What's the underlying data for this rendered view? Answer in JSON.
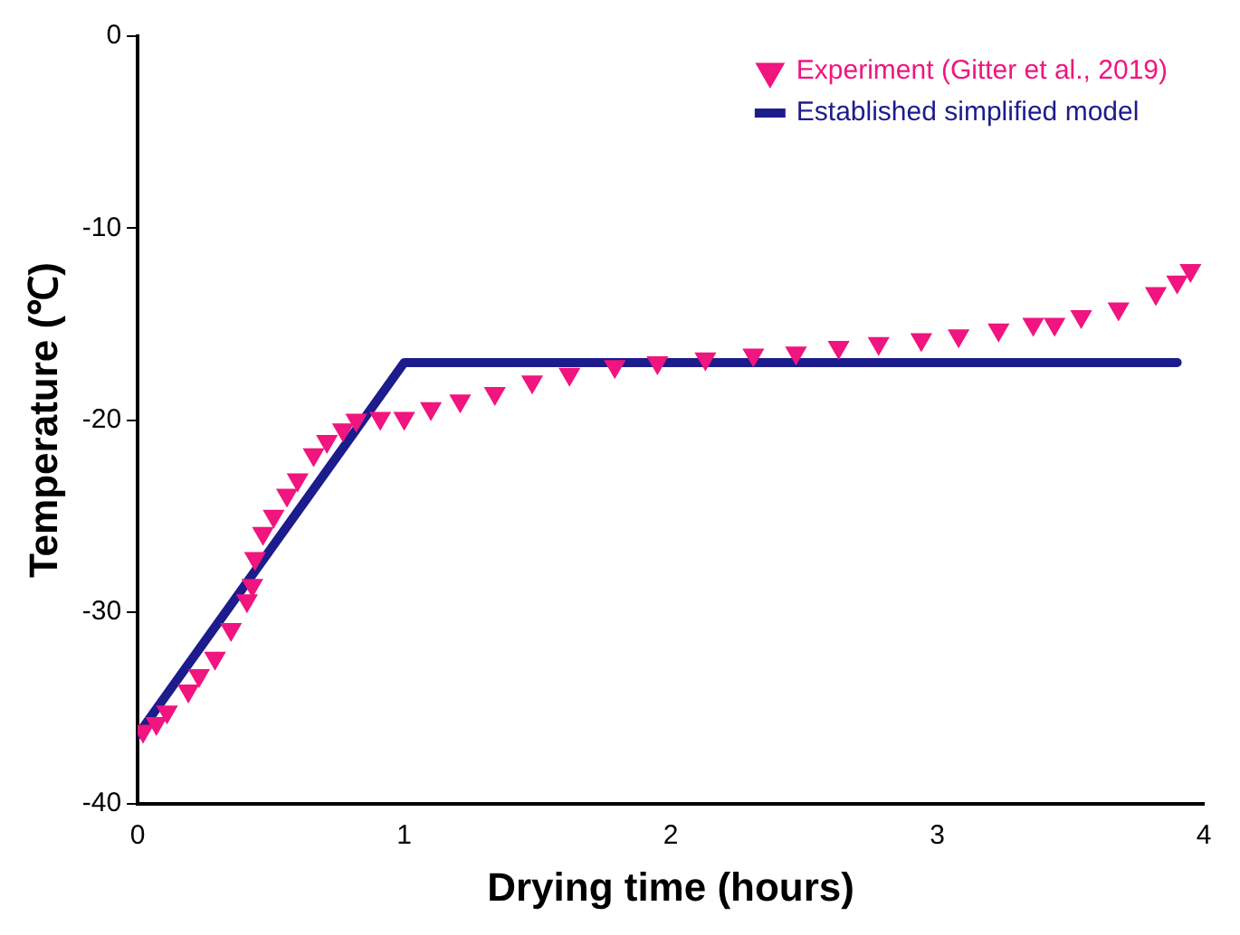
{
  "chart_data": {
    "type": "scatter",
    "xlabel": "Drying time (hours)",
    "ylabel": "Temperature (℃)",
    "xlim": [
      0,
      4
    ],
    "xticks": [
      0,
      1,
      2,
      3,
      4
    ],
    "ylim": [
      -40,
      0
    ],
    "yticks": [
      -40,
      -30,
      -20,
      -10,
      0
    ],
    "grid": false,
    "legend": "top right",
    "series": [
      {
        "name": "Experiment (Gitter et al., 2019)",
        "marker": "triangle",
        "color": "#f0157f",
        "x": [
          0.02,
          0.07,
          0.11,
          0.19,
          0.23,
          0.29,
          0.35,
          0.41,
          0.43,
          0.44,
          0.47,
          0.51,
          0.56,
          0.6,
          0.66,
          0.71,
          0.77,
          0.82,
          0.91,
          1.0,
          1.1,
          1.21,
          1.34,
          1.48,
          1.62,
          1.79,
          1.95,
          2.13,
          2.31,
          2.47,
          2.63,
          2.78,
          2.94,
          3.08,
          3.23,
          3.36,
          3.44,
          3.54,
          3.68,
          3.82,
          3.9,
          3.95
        ],
        "values": [
          -36.2,
          -35.8,
          -35.2,
          -34.1,
          -33.3,
          -32.4,
          -30.9,
          -29.4,
          -28.6,
          -27.2,
          -25.9,
          -25.0,
          -23.9,
          -23.1,
          -21.8,
          -21.1,
          -20.5,
          -20.0,
          -19.9,
          -19.9,
          -19.4,
          -19.0,
          -18.6,
          -18.0,
          -17.6,
          -17.2,
          -17.0,
          -16.8,
          -16.6,
          -16.5,
          -16.2,
          -16.0,
          -15.8,
          -15.6,
          -15.3,
          -15.0,
          -15.0,
          -14.6,
          -14.2,
          -13.4,
          -12.8,
          -12.2
        ]
      },
      {
        "name": "Established simplified model",
        "type": "line",
        "marker": "none",
        "line_style": "solid",
        "color": "#1c1c8c",
        "x": [
          0,
          1,
          3.9
        ],
        "values": [
          -36.4,
          -17,
          -17
        ]
      }
    ]
  }
}
